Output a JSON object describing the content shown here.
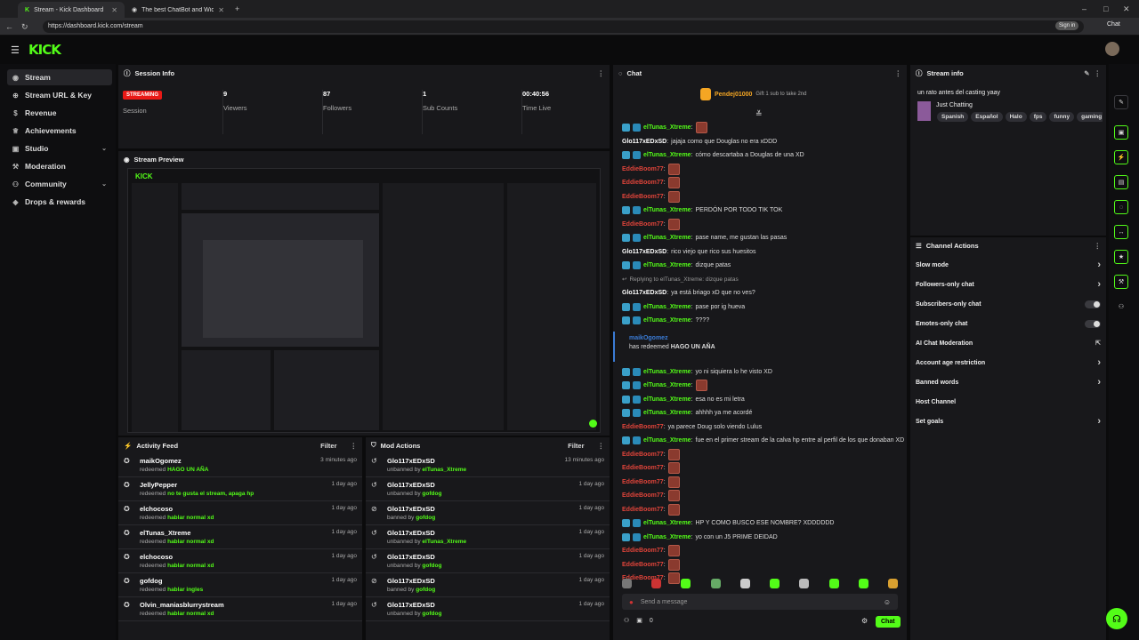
{
  "browser": {
    "tabs": [
      {
        "title": "Stream - Kick Dashboard"
      },
      {
        "title": "The best ChatBot and Widgets fo"
      }
    ],
    "new_tab": "+",
    "url": "https://dashboard.kick.com/stream",
    "sign_in": "Sign in",
    "chat_label": "Chat"
  },
  "app": {
    "logo": "KICK",
    "nav": [
      {
        "label": "Stream",
        "icon": "broadcast-icon",
        "active": true
      },
      {
        "label": "Stream URL & Key",
        "icon": "link-icon"
      },
      {
        "label": "Revenue",
        "icon": "revenue-icon"
      },
      {
        "label": "Achievements",
        "icon": "trophy-icon"
      },
      {
        "label": "Studio",
        "icon": "studio-icon",
        "chevron": true
      },
      {
        "label": "Moderation",
        "icon": "gavel-icon"
      },
      {
        "label": "Community",
        "icon": "community-icon",
        "chevron": true
      },
      {
        "label": "Drops & rewards",
        "icon": "drops-icon"
      }
    ]
  },
  "session": {
    "title": "Session Info",
    "status_badge": "STREAMING",
    "status_label": "Session",
    "stats": [
      {
        "value": "9",
        "label": "Viewers"
      },
      {
        "value": "87",
        "label": "Followers"
      },
      {
        "value": "1",
        "label": "Sub Counts"
      },
      {
        "value": "00:40:56",
        "label": "Time Live"
      }
    ]
  },
  "preview": {
    "title": "Stream Preview"
  },
  "activity": {
    "title": "Activity Feed",
    "filter": "Filter",
    "items": [
      {
        "user": "maikOgomez",
        "action": "redeemed",
        "detail": "HAGO UN AÑA",
        "time": "3 minutes ago"
      },
      {
        "user": "JellyPepper",
        "action": "redeemed",
        "detail": "no te gusta el stream, apaga hp",
        "time": "1 day ago"
      },
      {
        "user": "elchocoso",
        "action": "redeemed",
        "detail": "hablar normal xd",
        "time": "1 day ago"
      },
      {
        "user": "elTunas_Xtreme",
        "action": "redeemed",
        "detail": "hablar normal xd",
        "time": "1 day ago"
      },
      {
        "user": "elchocoso",
        "action": "redeemed",
        "detail": "hablar normal xd",
        "time": "1 day ago"
      },
      {
        "user": "gofdog",
        "action": "redeemed",
        "detail": "hablar ingles",
        "time": "1 day ago"
      },
      {
        "user": "Olvin_maniasblurrystream",
        "action": "redeemed",
        "detail": "hablar normal xd",
        "time": "1 day ago"
      }
    ]
  },
  "modactions": {
    "title": "Mod Actions",
    "filter": "Filter",
    "items": [
      {
        "user": "Glo117xEDxSD",
        "action": "unbanned by",
        "by": "elTunas_Xtreme",
        "time": "13 minutes ago"
      },
      {
        "user": "Glo117xEDxSD",
        "action": "unbanned by",
        "by": "gofdog",
        "time": "1 day ago"
      },
      {
        "user": "Glo117xEDxSD",
        "action": "banned by",
        "by": "gofdog",
        "time": "1 day ago"
      },
      {
        "user": "Glo117xEDxSD",
        "action": "unbanned by",
        "by": "elTunas_Xtreme",
        "time": "1 day ago"
      },
      {
        "user": "Glo117xEDxSD",
        "action": "unbanned by",
        "by": "gofdog",
        "time": "1 day ago"
      },
      {
        "user": "Glo117xEDxSD",
        "action": "banned by",
        "by": "gofdog",
        "time": "1 day ago"
      },
      {
        "user": "Glo117xEDxSD",
        "action": "unbanned by",
        "by": "gofdog",
        "time": "1 day ago"
      }
    ]
  },
  "chat": {
    "title": "Chat",
    "pinned_user": "Pendej01000",
    "pinned_text": "Gift 1 sub to take 2nd",
    "messages": [
      {
        "user": "elTunas_Xtreme",
        "color": "#53fc18",
        "text": "",
        "emote": true
      },
      {
        "user": "Glo117xEDxSD",
        "color": "#ffffff",
        "text": "jajaja como que Douglas no era xDDD"
      },
      {
        "user": "elTunas_Xtreme",
        "color": "#53fc18",
        "text": "cómo descartaba a Douglas de una XD"
      },
      {
        "user": "EddieBoom77",
        "color": "#e0443a",
        "text": "",
        "emote": true
      },
      {
        "user": "EddieBoom77",
        "color": "#e0443a",
        "text": "",
        "emote": true
      },
      {
        "user": "EddieBoom77",
        "color": "#e0443a",
        "text": "",
        "emote": true
      },
      {
        "user": "elTunas_Xtreme",
        "color": "#53fc18",
        "text": "PERDÓN POR TODO TIK TOK"
      },
      {
        "user": "EddieBoom77",
        "color": "#e0443a",
        "text": "",
        "emote": true
      },
      {
        "user": "elTunas_Xtreme",
        "color": "#53fc18",
        "text": "pase name, me gustan las pasas"
      },
      {
        "user": "Glo117xEDxSD",
        "color": "#ffffff",
        "text": "rico viejo que rico sus huesitos"
      },
      {
        "user": "elTunas_Xtreme",
        "color": "#53fc18",
        "text": "dizque patas"
      },
      {
        "user": "",
        "color": "#aaaaaa",
        "text": "Replying to elTunas_Xtreme: dizque patas"
      },
      {
        "user": "Glo117xEDxSD",
        "color": "#ffffff",
        "text": "ya está briago xD que no ves?"
      },
      {
        "user": "elTunas_Xtreme",
        "color": "#53fc18",
        "text": "pase por ig hueva"
      },
      {
        "user": "elTunas_Xtreme",
        "color": "#53fc18",
        "text": "????"
      }
    ],
    "redeem_user": "maikOgomez",
    "redeem_text": "has redeemed",
    "redeem_reward": "HAGO UN AÑA",
    "messages2": [
      {
        "user": "elTunas_Xtreme",
        "color": "#53fc18",
        "text": "yo ni siquiera lo he visto XD"
      },
      {
        "user": "elTunas_Xtreme",
        "color": "#53fc18",
        "text": "",
        "emote": true
      },
      {
        "user": "elTunas_Xtreme",
        "color": "#53fc18",
        "text": "esa no es mi letra"
      },
      {
        "user": "elTunas_Xtreme",
        "color": "#53fc18",
        "text": "ahhhh ya me acordé"
      },
      {
        "user": "EddieBoom77",
        "color": "#e0443a",
        "text": "ya parece Doug solo viendo Lulus"
      },
      {
        "user": "elTunas_Xtreme",
        "color": "#53fc18",
        "text": "fue en el primer stream de la calva hp entre al perfil de los que donaban XD"
      },
      {
        "user": "EddieBoom77",
        "color": "#e0443a",
        "text": "",
        "emote": true
      },
      {
        "user": "EddieBoom77",
        "color": "#e0443a",
        "text": "",
        "emote": true
      },
      {
        "user": "EddieBoom77",
        "color": "#e0443a",
        "text": "",
        "emote": true
      },
      {
        "user": "EddieBoom77",
        "color": "#e0443a",
        "text": "",
        "emote": true
      },
      {
        "user": "EddieBoom77",
        "color": "#e0443a",
        "text": "",
        "emote": true
      },
      {
        "user": "elTunas_Xtreme",
        "color": "#53fc18",
        "text": "HP Y COMO BUSCO ESE NOMBRE? XDDDDDD"
      },
      {
        "user": "elTunas_Xtreme",
        "color": "#53fc18",
        "text": "yo con un J5 PRIME DEIDAD"
      },
      {
        "user": "EddieBoom77",
        "color": "#e0443a",
        "text": "",
        "emote": true
      },
      {
        "user": "EddieBoom77",
        "color": "#e0443a",
        "text": "",
        "emote": true
      },
      {
        "user": "EddieBoom77",
        "color": "#e0443a",
        "text": "",
        "emote": true
      }
    ],
    "placeholder": "Send a message",
    "send": "Chat",
    "count": "0"
  },
  "streaminfo": {
    "title": "Stream info",
    "stream_title": "un rato antes del casting yaay",
    "category": "Just Chatting",
    "tags": [
      "Spanish",
      "Español",
      "Halo",
      "fps",
      "funny",
      "gaming"
    ]
  },
  "channel_actions": {
    "title": "Channel Actions",
    "items": [
      {
        "label": "Slow mode",
        "ctrl": "chevron"
      },
      {
        "label": "Followers-only chat",
        "ctrl": "chevron"
      },
      {
        "label": "Subscribers-only chat",
        "ctrl": "toggle"
      },
      {
        "label": "Emotes-only chat",
        "ctrl": "toggle"
      },
      {
        "label": "AI Chat Moderation",
        "ctrl": "external"
      },
      {
        "label": "Account age restriction",
        "ctrl": "chevron"
      },
      {
        "label": "Banned words",
        "ctrl": "chevron"
      },
      {
        "label": "Host Channel",
        "ctrl": "none"
      },
      {
        "label": "Set goals",
        "ctrl": "chevron"
      }
    ]
  },
  "colors": {
    "accent": "#53fc18",
    "streaming": "#e91916",
    "panel": "#18181b"
  }
}
